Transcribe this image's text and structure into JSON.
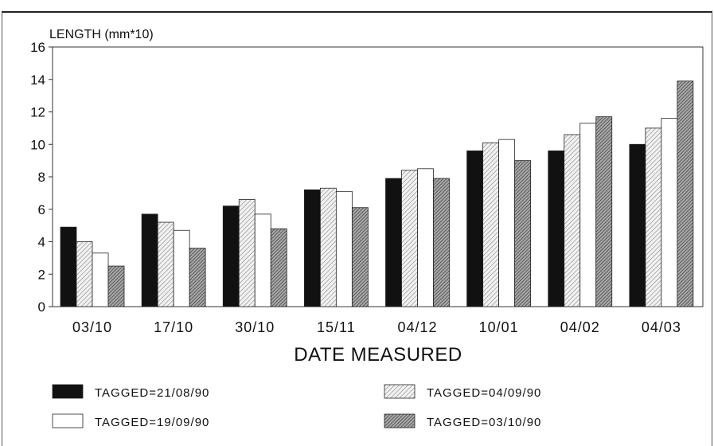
{
  "chart_data": {
    "type": "bar",
    "ylabel": "LENGTH (mm*10)",
    "xlabel": "DATE MEASURED",
    "ylim": [
      0,
      16
    ],
    "yticks": [
      "0",
      "2",
      "4",
      "6",
      "8",
      "10",
      "12",
      "14",
      "16"
    ],
    "grid": false,
    "categories": [
      "03/10",
      "17/10",
      "30/10",
      "15/11",
      "04/12",
      "10/01",
      "04/02",
      "04/03"
    ],
    "series": [
      {
        "name": "TAGGED=21/08/90",
        "fill": "#111111",
        "pattern": "solid",
        "values": [
          4.9,
          5.7,
          6.2,
          7.2,
          7.9,
          9.6,
          9.6,
          10.0
        ]
      },
      {
        "name": "TAGGED=04/09/90",
        "fill": "#d9d9d9",
        "pattern": "light-hatch",
        "values": [
          4.0,
          5.2,
          6.6,
          7.3,
          8.4,
          10.1,
          10.6,
          11.0
        ]
      },
      {
        "name": "TAGGED=19/09/90",
        "fill": "#ffffff",
        "pattern": "open",
        "values": [
          3.3,
          4.7,
          5.7,
          7.1,
          8.5,
          10.3,
          11.3,
          11.6
        ]
      },
      {
        "name": "TAGGED=03/10/90",
        "fill": "#8c8c8c",
        "pattern": "dark-hatch",
        "values": [
          2.5,
          3.6,
          4.8,
          6.1,
          7.9,
          9.0,
          11.7,
          13.9
        ]
      }
    ],
    "legend_position": "bottom"
  }
}
